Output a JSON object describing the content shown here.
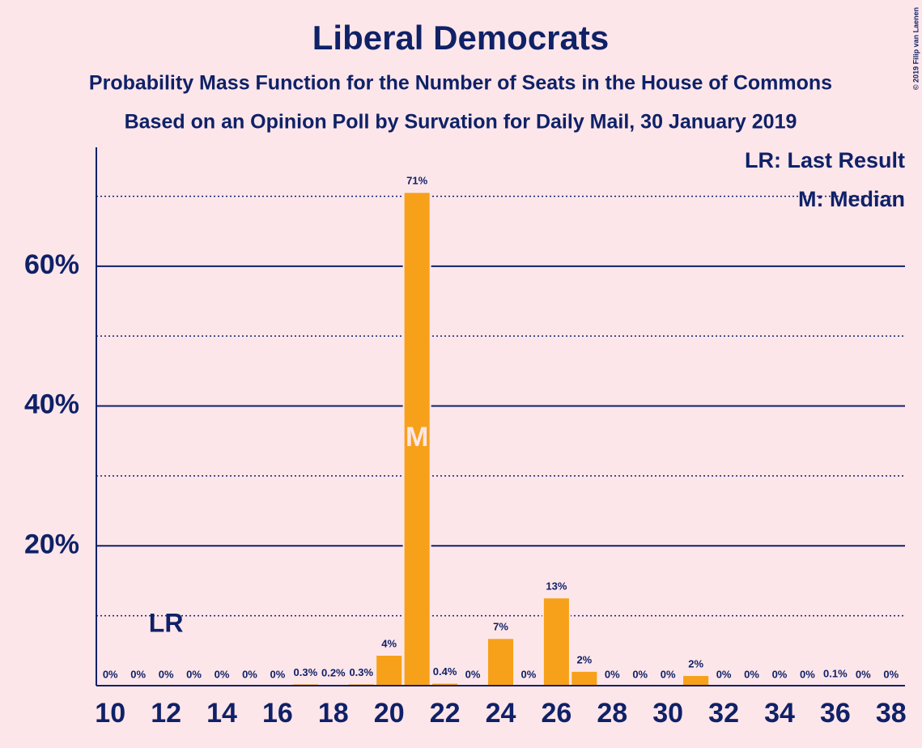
{
  "chart_data": {
    "type": "bar",
    "title": "Liberal Democrats",
    "subtitle": "Probability Mass Function for the Number of Seats in the House of Commons",
    "subtitle2": "Based on an Opinion Poll by Survation for Daily Mail, 30 January 2019",
    "copyright": "© 2019 Filip van Laenen",
    "color": "#f7a11a",
    "x": [
      10,
      11,
      12,
      13,
      14,
      15,
      16,
      17,
      18,
      19,
      20,
      21,
      22,
      23,
      24,
      25,
      26,
      27,
      28,
      29,
      30,
      31,
      32,
      33,
      34,
      35,
      36,
      37,
      38
    ],
    "values": [
      0,
      0,
      0,
      0,
      0,
      0,
      0,
      0.3,
      0.2,
      0.3,
      4.4,
      70.6,
      0.4,
      0,
      6.8,
      0,
      12.6,
      2.1,
      0,
      0,
      0,
      1.5,
      0,
      0,
      0,
      0,
      0.1,
      0,
      0
    ],
    "value_labels": [
      "0%",
      "0%",
      "0%",
      "0%",
      "0%",
      "0%",
      "0%",
      "0.3%",
      "0.2%",
      "0.3%",
      "4%",
      "71%",
      "0.4%",
      "0%",
      "7%",
      "0%",
      "13%",
      "2%",
      "0%",
      "0%",
      "0%",
      "2%",
      "0%",
      "0%",
      "0%",
      "0%",
      "0.1%",
      "0%",
      "0%"
    ],
    "xlim": [
      9.5,
      38.5
    ],
    "xticks": [
      10,
      12,
      14,
      16,
      18,
      20,
      22,
      24,
      26,
      28,
      30,
      32,
      34,
      36,
      38
    ],
    "ylim": [
      0,
      77
    ],
    "yticks": [
      {
        "value": 20,
        "label": "20%"
      },
      {
        "value": 40,
        "label": "40%"
      },
      {
        "value": 60,
        "label": "60%"
      }
    ],
    "minor_yticks": [
      10,
      30,
      50,
      70
    ],
    "grid": true,
    "annotations": [
      {
        "text": "LR",
        "x": 12
      },
      {
        "text": "M",
        "x": 21
      }
    ],
    "legend": [
      "LR: Last Result",
      "M: Median"
    ],
    "legend_position": "upper right"
  }
}
